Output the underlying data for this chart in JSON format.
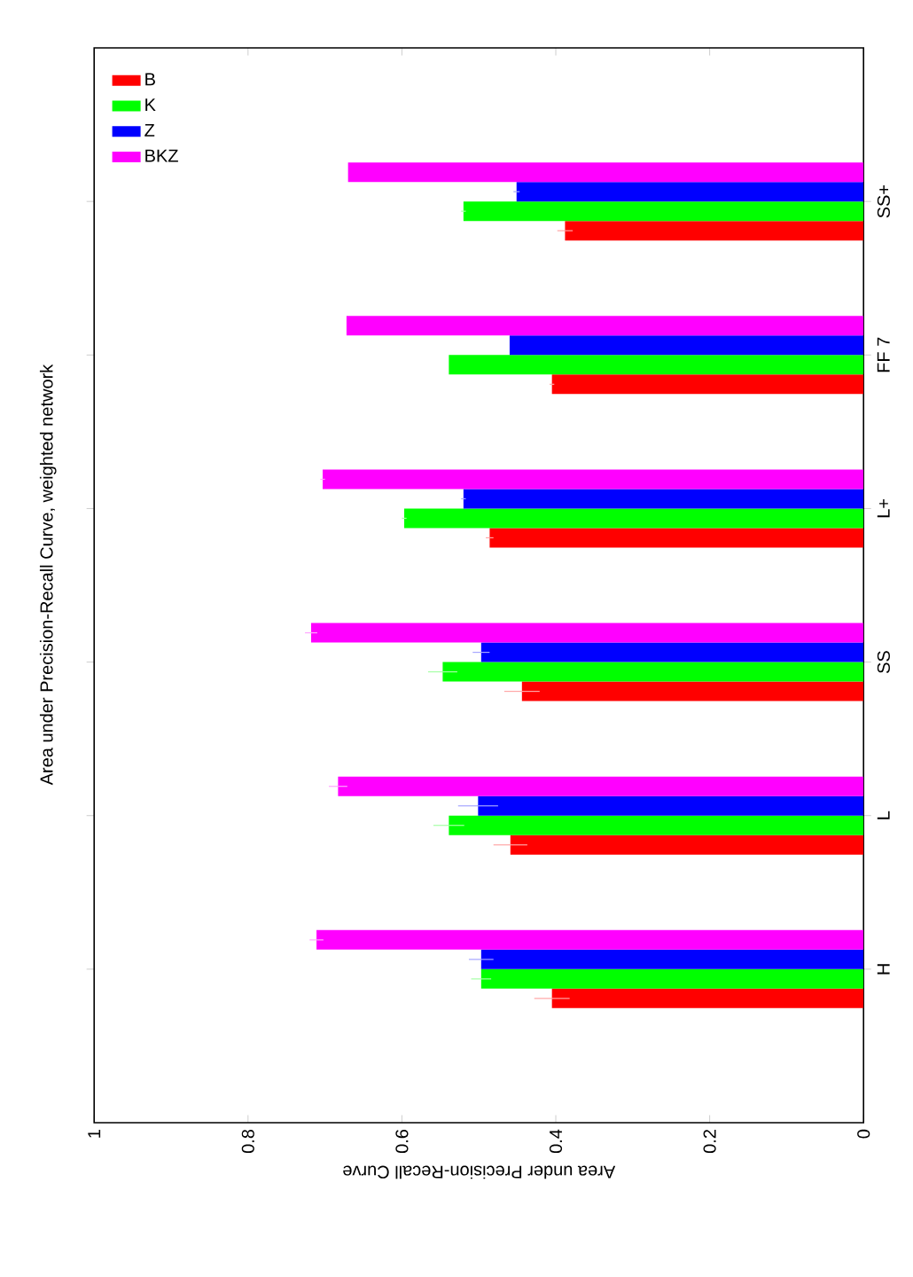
{
  "chart_data": {
    "type": "bar",
    "orientation": "horizontal",
    "title": "Area under Precision-Recall Curve, weighted network",
    "xlabel": "Area under Precision-Recall Curve",
    "categories": [
      "SS+",
      "FF 7",
      "L+",
      "SS",
      "L",
      "H"
    ],
    "series": [
      {
        "name": "B",
        "color": "#ff0000",
        "values": [
          0.388,
          0.405,
          0.486,
          0.444,
          0.459,
          0.405
        ],
        "errors": [
          0.01,
          0.003,
          0.005,
          0.023,
          0.022,
          0.023
        ]
      },
      {
        "name": "K",
        "color": "#00ff00",
        "values": [
          0.52,
          0.539,
          0.597,
          0.547,
          0.539,
          0.497
        ],
        "errors": [
          0.003,
          null,
          0.003,
          0.019,
          0.02,
          0.013
        ]
      },
      {
        "name": "Z",
        "color": "#0000ff",
        "values": [
          0.451,
          0.46,
          0.52,
          0.497,
          0.501,
          0.497
        ],
        "errors": [
          0.004,
          null,
          0.003,
          0.011,
          0.026,
          0.016
        ]
      },
      {
        "name": "BKZ",
        "color": "#ff00ff",
        "values": [
          0.67,
          0.672,
          0.703,
          0.718,
          0.683,
          0.711
        ],
        "errors": [
          null,
          null,
          0.003,
          0.008,
          0.012,
          0.009
        ]
      }
    ],
    "xlim": [
      1,
      0
    ],
    "xticks": [
      1,
      0.8,
      0.6,
      0.4,
      0.2,
      0
    ],
    "legend": "top left"
  }
}
